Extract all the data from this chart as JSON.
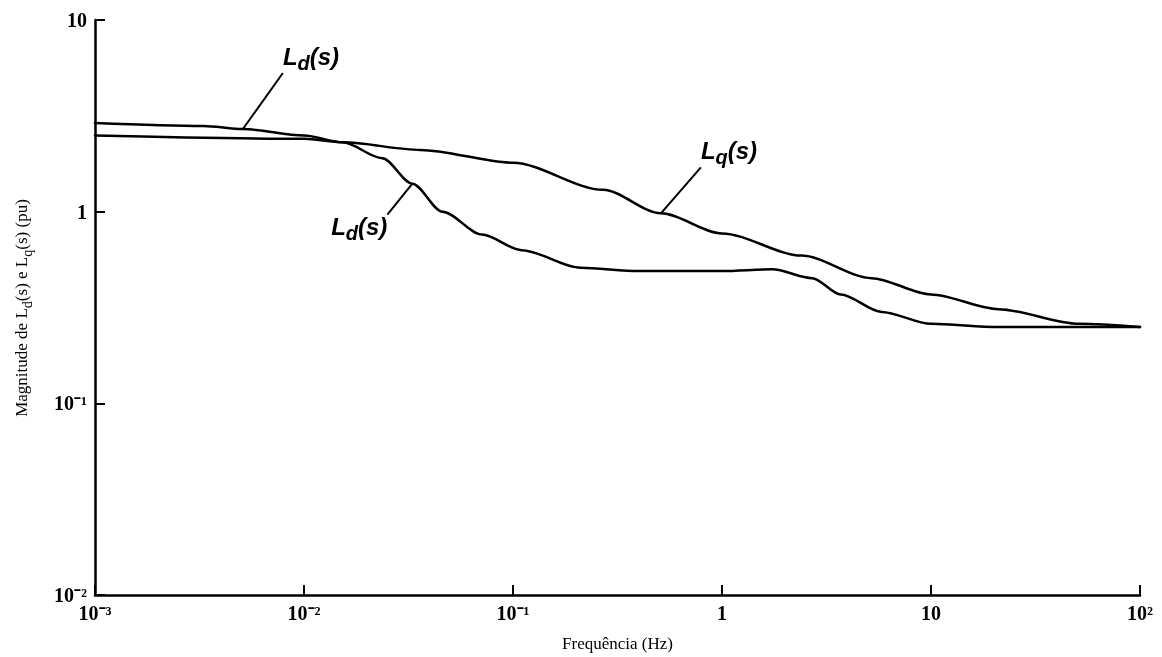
{
  "chart_data": {
    "type": "line",
    "xlabel": "Frequência (Hz)",
    "ylabel": "Magnitude de L$_{d}$(s) e L$_{q}$(s) (pu)",
    "log": "xy",
    "grid": false,
    "legend": false,
    "marker": "none",
    "line_style": "solid",
    "xlim": [
      0.001,
      100
    ],
    "xticks": [
      {
        "value": 0.001,
        "label": "10⁻³"
      },
      {
        "value": 0.01,
        "label": "10⁻²"
      },
      {
        "value": 0.1,
        "label": "10⁻¹"
      },
      1,
      10,
      {
        "value": 100,
        "label": "10²"
      }
    ],
    "ylim": [
      0.01,
      10
    ],
    "yticks": [
      {
        "value": 0.01,
        "label": "10⁻²"
      },
      {
        "value": 0.1,
        "label": "10⁻¹"
      },
      1,
      10
    ],
    "series": [
      {
        "name": "L$_{d}$(s)",
        "color": "#000000",
        "x": [
          0.001,
          0.0033,
          0.0051,
          0.01,
          0.0153,
          0.0237,
          0.033,
          0.046,
          0.071,
          0.11,
          0.21,
          0.4,
          1,
          1.74,
          2.7,
          3.7,
          5.8,
          10,
          21,
          42,
          100
        ],
        "values": [
          2.9,
          2.8,
          2.7,
          2.5,
          2.3,
          1.9,
          1.4,
          1.0,
          0.76,
          0.63,
          0.51,
          0.49,
          0.49,
          0.5,
          0.45,
          0.37,
          0.3,
          0.26,
          0.25,
          0.25,
          0.25
        ]
      },
      {
        "name": "L$_{q}$(s)",
        "color": "#000000",
        "x": [
          0.001,
          0.01,
          0.0153,
          0.036,
          0.1,
          0.27,
          0.51,
          1,
          2.4,
          5.2,
          10,
          21,
          51,
          100
        ],
        "values": [
          2.5,
          2.4,
          2.3,
          2.1,
          1.8,
          1.3,
          0.98,
          0.77,
          0.59,
          0.45,
          0.37,
          0.31,
          0.26,
          0.25
        ]
      }
    ],
    "annotations": [
      {
        "text": "L$_{d}$(s)",
        "x": 0.033,
        "y": 1.4
      }
    ]
  }
}
